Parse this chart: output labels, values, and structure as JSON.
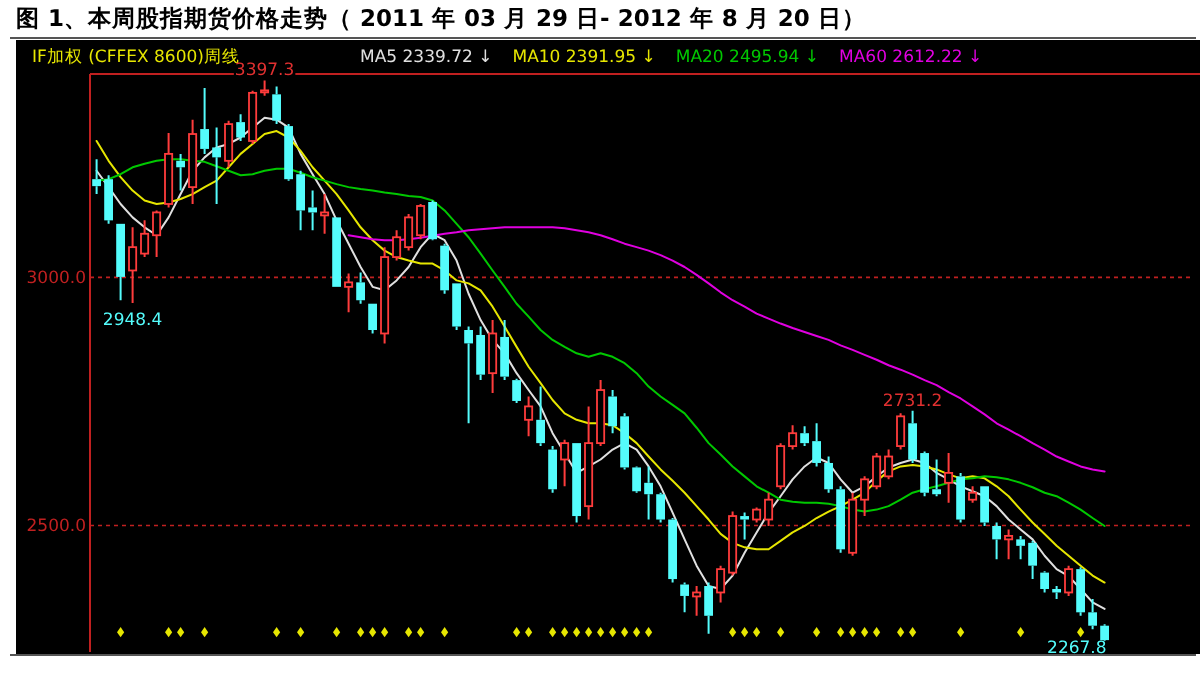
{
  "chart_data": {
    "type": "candlestick",
    "title": "图 1、本周股指期货价格走势（ 2011 年 03 月 29 日- 2012 年 8 月 20 日）",
    "subtitle": "IF加权  (CFFEX 8600)周线",
    "categories": [
      null,
      null,
      null,
      null,
      null,
      null,
      null,
      null,
      null,
      null,
      null,
      null,
      null,
      null,
      null,
      null,
      null,
      null,
      null,
      null,
      null,
      null,
      null,
      null,
      null,
      null,
      null,
      null,
      null,
      null,
      null,
      null,
      null,
      null,
      null,
      null,
      null,
      null,
      null,
      null,
      null,
      null,
      null,
      null,
      null,
      null,
      null,
      null,
      null,
      null,
      null,
      null,
      null,
      null,
      null,
      null,
      null,
      null,
      null,
      null,
      null,
      null,
      null,
      null,
      null,
      null,
      null,
      null,
      null,
      null,
      null,
      null,
      null,
      null,
      null,
      null,
      null,
      null,
      null,
      null,
      null,
      null,
      null,
      null,
      null
    ],
    "ohlc": [
      [
        3198,
        3238,
        3168,
        3184
      ],
      [
        3198,
        3206,
        3108,
        3115
      ],
      [
        3108,
        3108,
        2954,
        3001
      ],
      [
        3014,
        3101,
        2948.4,
        3061
      ],
      [
        3048,
        3115,
        3041,
        3088
      ],
      [
        3085,
        3135,
        3041,
        3131
      ],
      [
        3148,
        3291,
        3141,
        3249
      ],
      [
        3235,
        3249,
        3175,
        3222
      ],
      [
        3182,
        3318,
        3148,
        3289
      ],
      [
        3299,
        3382,
        3249,
        3259
      ],
      [
        3262,
        3302,
        3148,
        3242
      ],
      [
        3235,
        3316,
        3222,
        3309
      ],
      [
        3313,
        3329,
        3275,
        3282
      ],
      [
        3275,
        3376,
        3269,
        3372
      ],
      [
        3373,
        3397.3,
        3366,
        3377
      ],
      [
        3369,
        3385,
        3309,
        3316
      ],
      [
        3305,
        3309,
        3195,
        3198
      ],
      [
        3208,
        3215,
        3095,
        3135
      ],
      [
        3141,
        3175,
        3095,
        3131
      ],
      [
        3125,
        3168,
        3088,
        3131
      ],
      [
        3121,
        3121,
        2981,
        2981
      ],
      [
        2981,
        3008,
        2930,
        2990
      ],
      [
        2990,
        3010,
        2947,
        2954
      ],
      [
        2947,
        2947,
        2887,
        2894
      ],
      [
        2887,
        3061,
        2867,
        3041
      ],
      [
        3041,
        3095,
        3034,
        3081
      ],
      [
        3061,
        3128,
        3054,
        3121
      ],
      [
        3085,
        3148,
        3077,
        3144
      ],
      [
        3152,
        3155,
        3075,
        3077
      ],
      [
        3064,
        3068,
        2967,
        2974
      ],
      [
        2988,
        2988,
        2894,
        2901
      ],
      [
        2894,
        2901,
        2706,
        2867
      ],
      [
        2884,
        2901,
        2793,
        2804
      ],
      [
        2807,
        2914,
        2767,
        2887
      ],
      [
        2880,
        2914,
        2793,
        2800
      ],
      [
        2793,
        2796,
        2747,
        2751
      ],
      [
        2713,
        2760,
        2680,
        2740
      ],
      [
        2713,
        2780,
        2660,
        2666
      ],
      [
        2653,
        2660,
        2566,
        2573
      ],
      [
        2633,
        2673,
        2579,
        2666
      ],
      [
        2666,
        2666,
        2506,
        2519
      ],
      [
        2539,
        2740,
        2512,
        2666
      ],
      [
        2666,
        2793,
        2660,
        2773
      ],
      [
        2760,
        2773,
        2686,
        2700
      ],
      [
        2720,
        2726,
        2613,
        2617
      ],
      [
        2617,
        2619,
        2566,
        2569
      ],
      [
        2586,
        2619,
        2512,
        2563
      ],
      [
        2563,
        2566,
        2506,
        2512
      ],
      [
        2512,
        2515,
        2385,
        2392
      ],
      [
        2381,
        2385,
        2325,
        2358
      ],
      [
        2357,
        2378,
        2318,
        2365
      ],
      [
        2378,
        2385,
        2282,
        2318
      ],
      [
        2365,
        2419,
        2345,
        2412
      ],
      [
        2405,
        2528,
        2399,
        2519
      ],
      [
        2519,
        2526,
        2472,
        2512
      ],
      [
        2512,
        2536,
        2506,
        2532
      ],
      [
        2512,
        2566,
        2499,
        2552
      ],
      [
        2579,
        2666,
        2573,
        2660
      ],
      [
        2660,
        2702,
        2653,
        2686
      ],
      [
        2686,
        2700,
        2660,
        2666
      ],
      [
        2670,
        2706,
        2619,
        2626
      ],
      [
        2626,
        2639,
        2566,
        2573
      ],
      [
        2573,
        2579,
        2445,
        2452
      ],
      [
        2445,
        2566,
        2439,
        2552
      ],
      [
        2552,
        2599,
        2519,
        2593
      ],
      [
        2579,
        2646,
        2573,
        2639
      ],
      [
        2599,
        2653,
        2593,
        2639
      ],
      [
        2660,
        2726,
        2653,
        2720
      ],
      [
        2706,
        2731.2,
        2626,
        2633
      ],
      [
        2646,
        2649,
        2559,
        2566
      ],
      [
        2573,
        2633,
        2559,
        2563
      ],
      [
        2586,
        2646,
        2546,
        2606
      ],
      [
        2599,
        2606,
        2506,
        2512
      ],
      [
        2552,
        2579,
        2546,
        2566
      ],
      [
        2579,
        2579,
        2499,
        2506
      ],
      [
        2499,
        2506,
        2432,
        2472
      ],
      [
        2472,
        2492,
        2432,
        2479
      ],
      [
        2472,
        2479,
        2432,
        2459
      ],
      [
        2465,
        2469,
        2392,
        2419
      ],
      [
        2405,
        2408,
        2365,
        2372
      ],
      [
        2372,
        2378,
        2352,
        2365
      ],
      [
        2365,
        2419,
        2358,
        2412
      ],
      [
        2412,
        2416,
        2318,
        2325
      ],
      [
        2325,
        2352,
        2291,
        2298
      ],
      [
        2298,
        2301,
        2267.8,
        2269
      ]
    ],
    "series": [
      {
        "name": "MA5 2339.72 ↓",
        "type": "line",
        "color": "#e0e0e0",
        "values": [
          3215,
          3182,
          3148,
          3121,
          3101,
          3085,
          3121,
          3168,
          3215,
          3242,
          3262,
          3269,
          3282,
          3302,
          3322,
          3318,
          3302,
          3249,
          3208,
          3168,
          3115,
          3068,
          3021,
          2981,
          2974,
          2994,
          3021,
          3061,
          3088,
          3075,
          3034,
          2967,
          2914,
          2874,
          2847,
          2807,
          2773,
          2740,
          2686,
          2646,
          2606,
          2619,
          2633,
          2653,
          2666,
          2653,
          2619,
          2579,
          2526,
          2472,
          2419,
          2378,
          2372,
          2399,
          2445,
          2486,
          2526,
          2559,
          2593,
          2619,
          2637,
          2626,
          2593,
          2566,
          2579,
          2599,
          2617,
          2626,
          2633,
          2626,
          2606,
          2593,
          2579,
          2569,
          2559,
          2539,
          2512,
          2492,
          2472,
          2439,
          2412,
          2398,
          2372,
          2345,
          2332
        ]
      },
      {
        "name": "MA10 2391.95 ↓",
        "type": "line",
        "color": "#e6e600",
        "values": [
          3275,
          3235,
          3202,
          3175,
          3155,
          3148,
          3151,
          3158,
          3168,
          3182,
          3195,
          3222,
          3249,
          3269,
          3289,
          3295,
          3282,
          3255,
          3222,
          3195,
          3168,
          3135,
          3101,
          3075,
          3054,
          3041,
          3034,
          3028,
          3028,
          3014,
          2994,
          2988,
          2974,
          2941,
          2901,
          2860,
          2820,
          2787,
          2753,
          2726,
          2713,
          2706,
          2706,
          2702,
          2686,
          2666,
          2639,
          2613,
          2590,
          2566,
          2539,
          2512,
          2483,
          2465,
          2456,
          2452,
          2452,
          2469,
          2486,
          2499,
          2515,
          2528,
          2539,
          2552,
          2566,
          2590,
          2609,
          2619,
          2622,
          2619,
          2613,
          2603,
          2595,
          2599,
          2595,
          2579,
          2559,
          2532,
          2506,
          2483,
          2459,
          2439,
          2419,
          2399,
          2385
        ]
      },
      {
        "name": "MA20 2495.94 ↓",
        "type": "line",
        "color": "#00c800",
        "values": [
          3195,
          3198,
          3208,
          3222,
          3229,
          3235,
          3238,
          3238,
          3235,
          3233,
          3224,
          3215,
          3206,
          3208,
          3215,
          3219,
          3219,
          3211,
          3202,
          3195,
          3188,
          3182,
          3178,
          3175,
          3171,
          3168,
          3164,
          3162,
          3155,
          3135,
          3108,
          3081,
          3048,
          3014,
          2981,
          2947,
          2921,
          2894,
          2874,
          2860,
          2847,
          2840,
          2847,
          2840,
          2827,
          2807,
          2780,
          2760,
          2743,
          2726,
          2697,
          2666,
          2643,
          2619,
          2599,
          2579,
          2566,
          2552,
          2548,
          2546,
          2546,
          2544,
          2539,
          2532,
          2528,
          2532,
          2539,
          2552,
          2566,
          2573,
          2579,
          2586,
          2593,
          2595,
          2599,
          2597,
          2593,
          2586,
          2577,
          2566,
          2559,
          2546,
          2532,
          2515,
          2499
        ]
      },
      {
        "name": "MA60 2612.22 ↓",
        "type": "line",
        "color": "#e000e0",
        "values": [
          null,
          null,
          null,
          null,
          null,
          null,
          null,
          null,
          null,
          null,
          null,
          null,
          null,
          null,
          null,
          null,
          null,
          null,
          null,
          null,
          null,
          3085,
          3081,
          3077,
          3075,
          3075,
          3077,
          3080,
          3084,
          3088,
          3091,
          3095,
          3097,
          3099,
          3101,
          3101,
          3101,
          3101,
          3101,
          3099,
          3095,
          3091,
          3085,
          3077,
          3068,
          3061,
          3054,
          3045,
          3034,
          3021,
          3005,
          2988,
          2970,
          2954,
          2941,
          2927,
          2917,
          2907,
          2898,
          2890,
          2882,
          2874,
          2863,
          2854,
          2844,
          2834,
          2823,
          2814,
          2804,
          2793,
          2783,
          2769,
          2756,
          2740,
          2724,
          2706,
          2693,
          2680,
          2666,
          2653,
          2639,
          2629,
          2619,
          2613,
          2609
        ]
      },
      {
        "type": "scatter",
        "color": "#e6e600",
        "marker": "diamond",
        "values": [
          null,
          null,
          2285,
          null,
          null,
          null,
          2285,
          2285,
          null,
          2285,
          null,
          null,
          null,
          null,
          null,
          2285,
          null,
          2285,
          null,
          null,
          2285,
          null,
          2285,
          2285,
          2285,
          null,
          2285,
          2285,
          null,
          2285,
          null,
          null,
          null,
          null,
          null,
          2285,
          2285,
          null,
          2285,
          2285,
          2285,
          2285,
          2285,
          2285,
          2285,
          2285,
          2285,
          null,
          null,
          null,
          null,
          null,
          null,
          2285,
          2285,
          2285,
          null,
          2285,
          null,
          null,
          2285,
          null,
          2285,
          2285,
          2285,
          2285,
          null,
          2285,
          2285,
          null,
          null,
          null,
          2285,
          null,
          null,
          null,
          null,
          2285,
          null,
          null,
          null,
          null,
          2285,
          null,
          null
        ]
      }
    ],
    "ylim": [
      2245,
      3410
    ],
    "yticks": [
      {
        "value": 3000,
        "label": "3000.0"
      },
      {
        "value": 2500,
        "label": "2500.0"
      }
    ],
    "grid": "y",
    "legend": "top",
    "annotations": [
      {
        "text": "3397.3",
        "y": 3397.3
      },
      {
        "text": "2948.4",
        "y": 2948.4
      },
      {
        "text": "2731.2",
        "y": 2731.2
      },
      {
        "text": "2267.8",
        "y": 2267.8
      }
    ]
  }
}
